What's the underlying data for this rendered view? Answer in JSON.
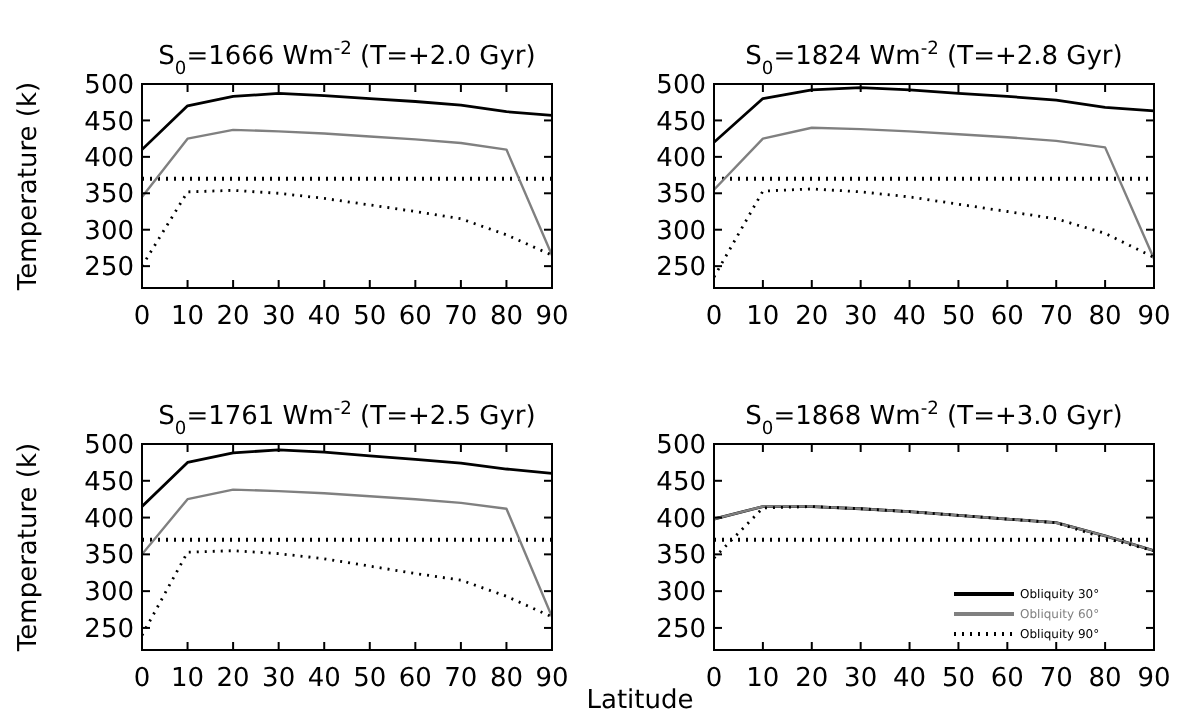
{
  "chart_data": [
    {
      "type": "line",
      "title": "S$_{0}$=1666 Wm$^{-2}$ (T=+2.0 Gyr)",
      "ylabel": "Temperature (k)",
      "x": [
        0,
        10,
        20,
        30,
        40,
        50,
        60,
        70,
        80,
        90
      ],
      "xlim": [
        0,
        90
      ],
      "xticks": [
        0,
        10,
        20,
        30,
        40,
        50,
        60,
        70,
        80,
        90
      ],
      "ylim": [
        220,
        500
      ],
      "yticks": [
        250,
        300,
        350,
        400,
        450,
        500
      ],
      "series": [
        {
          "color": "#000000",
          "line_style": "solid",
          "values": [
            410,
            470,
            483,
            487,
            484,
            480,
            476,
            471,
            462,
            457
          ]
        },
        {
          "color": "#808080",
          "line_style": "solid",
          "values": [
            345,
            425,
            437,
            435,
            432,
            428,
            424,
            419,
            410,
            265
          ]
        },
        {
          "color": "#000000",
          "line_style": "dotted",
          "values": [
            250,
            352,
            354,
            350,
            343,
            334,
            325,
            315,
            293,
            265
          ]
        }
      ],
      "ref_lines": [
        {
          "axis": "y",
          "value": 370,
          "color": "#000000",
          "line_style": "dotted"
        }
      ]
    },
    {
      "type": "line",
      "title": "S$_{0}$=1824 Wm$^{-2}$ (T=+2.8 Gyr)",
      "x": [
        0,
        10,
        20,
        30,
        40,
        50,
        60,
        70,
        80,
        90
      ],
      "xlim": [
        0,
        90
      ],
      "xticks": [
        0,
        10,
        20,
        30,
        40,
        50,
        60,
        70,
        80,
        90
      ],
      "ylim": [
        220,
        500
      ],
      "yticks": [
        250,
        300,
        350,
        400,
        450,
        500
      ],
      "series": [
        {
          "color": "#000000",
          "line_style": "solid",
          "values": [
            420,
            480,
            492,
            495,
            492,
            487,
            483,
            478,
            468,
            463
          ]
        },
        {
          "color": "#808080",
          "line_style": "solid",
          "values": [
            355,
            425,
            440,
            438,
            435,
            431,
            427,
            422,
            413,
            260
          ]
        },
        {
          "color": "#000000",
          "line_style": "dotted",
          "values": [
            235,
            353,
            356,
            352,
            345,
            335,
            325,
            315,
            295,
            262
          ]
        }
      ],
      "ref_lines": [
        {
          "axis": "y",
          "value": 370,
          "color": "#000000",
          "line_style": "dotted"
        }
      ]
    },
    {
      "type": "line",
      "title": "S$_{0}$=1761 Wm$^{-2}$ (T=+2.5 Gyr)",
      "ylabel": "Temperature (k)",
      "xlabel": "Latitude",
      "x": [
        0,
        10,
        20,
        30,
        40,
        50,
        60,
        70,
        80,
        90
      ],
      "xlim": [
        0,
        90
      ],
      "xticks": [
        0,
        10,
        20,
        30,
        40,
        50,
        60,
        70,
        80,
        90
      ],
      "ylim": [
        220,
        500
      ],
      "yticks": [
        250,
        300,
        350,
        400,
        450,
        500
      ],
      "series": [
        {
          "color": "#000000",
          "line_style": "solid",
          "values": [
            415,
            475,
            488,
            492,
            489,
            484,
            479,
            474,
            466,
            460
          ]
        },
        {
          "color": "#808080",
          "line_style": "solid",
          "values": [
            350,
            425,
            438,
            436,
            433,
            429,
            425,
            420,
            412,
            265
          ]
        },
        {
          "color": "#000000",
          "line_style": "dotted",
          "values": [
            240,
            353,
            355,
            351,
            344,
            334,
            324,
            315,
            293,
            265
          ]
        }
      ],
      "ref_lines": [
        {
          "axis": "y",
          "value": 370,
          "color": "#000000",
          "line_style": "dotted"
        }
      ]
    },
    {
      "type": "line",
      "title": "S$_{0}$=1868 Wm$^{-2}$ (T=+3.0 Gyr)",
      "x": [
        0,
        10,
        20,
        30,
        40,
        50,
        60,
        70,
        80,
        90
      ],
      "xlim": [
        0,
        90
      ],
      "xticks": [
        0,
        10,
        20,
        30,
        40,
        50,
        60,
        70,
        80,
        90
      ],
      "ylim": [
        220,
        500
      ],
      "yticks": [
        250,
        300,
        350,
        400,
        450,
        500
      ],
      "legend": "bottom right",
      "series": [
        {
          "name": "Obliquity 30°",
          "color": "#000000",
          "line_style": "solid",
          "values": [
            398,
            415,
            415,
            412,
            408,
            403,
            398,
            393,
            375,
            355
          ]
        },
        {
          "name": "Obliquity 60°",
          "color": "#808080",
          "line_style": "solid",
          "values": [
            398,
            415,
            415,
            412,
            408,
            403,
            398,
            393,
            375,
            355
          ]
        },
        {
          "name": "Obliquity 90°",
          "color": "#000000",
          "line_style": "dotted",
          "values": [
            345,
            413,
            415,
            412,
            408,
            403,
            398,
            393,
            372,
            355
          ]
        }
      ],
      "ref_lines": [
        {
          "axis": "y",
          "value": 370,
          "color": "#000000",
          "line_style": "dotted"
        }
      ]
    }
  ]
}
